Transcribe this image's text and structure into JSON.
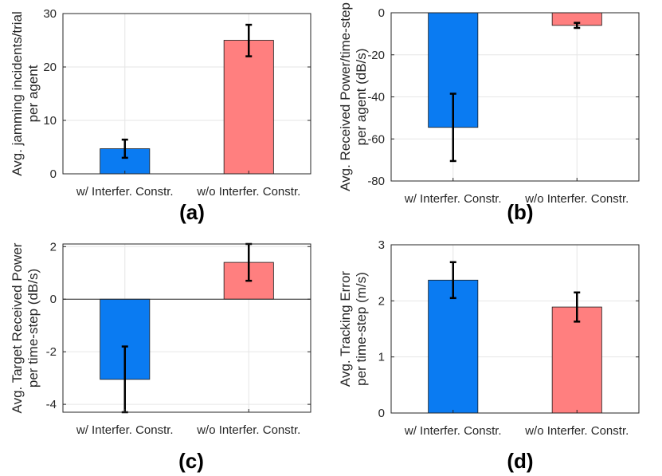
{
  "colors": {
    "blue": "#0A7BF2",
    "red": "#FF7F7F",
    "axis": "#262626",
    "grid": "#E6E6E6",
    "error": "#000000"
  },
  "chart_data": [
    {
      "type": "bar",
      "panel_label": "(a)",
      "categories": [
        "w/ Interfer. Constr.",
        "w/o Interfer. Constr."
      ],
      "values": [
        4.7,
        25.0
      ],
      "err_low": [
        3.0,
        22.0
      ],
      "err_high": [
        6.4,
        27.9
      ],
      "ylabel": [
        "Avg. jamming incidents/trial",
        "per agent"
      ],
      "ylim": [
        0,
        30
      ],
      "yticks": [
        0,
        10,
        20,
        30
      ],
      "ytick_labels": [
        "0",
        "10",
        "20",
        "30"
      ],
      "grid": true
    },
    {
      "type": "bar",
      "panel_label": "(b)",
      "categories": [
        "w/ Interfer. Constr.",
        "w/o Interfer. Constr."
      ],
      "values": [
        -54.5,
        -6.0
      ],
      "err_low": [
        -70.5,
        -7.2
      ],
      "err_high": [
        -38.5,
        -4.8
      ],
      "ylabel": [
        "Avg. Received Power/time-step",
        "per agent (dB/s)"
      ],
      "ylim": [
        -80,
        0
      ],
      "yticks": [
        -80,
        -60,
        -40,
        -20,
        0
      ],
      "ytick_labels": [
        "-80",
        "-60",
        "-40",
        "-20",
        "0"
      ],
      "grid": true
    },
    {
      "type": "bar",
      "panel_label": "(c)",
      "categories": [
        "w/ Interfer. Constr.",
        "w/o Interfer. Constr."
      ],
      "values": [
        -3.05,
        1.4
      ],
      "err_low": [
        -4.3,
        0.7
      ],
      "err_high": [
        -1.8,
        2.1
      ],
      "ylabel": [
        "Avg. Target Received Power",
        "per time-step (dB/s)"
      ],
      "ylim": [
        -4.3,
        2.1
      ],
      "yticks": [
        -4,
        -2,
        0,
        2
      ],
      "ytick_labels": [
        "-4",
        "-2",
        "0",
        "2"
      ],
      "grid": true
    },
    {
      "type": "bar",
      "panel_label": "(d)",
      "categories": [
        "w/ Interfer. Constr.",
        "w/o Interfer. Constr."
      ],
      "values": [
        2.37,
        1.89
      ],
      "err_low": [
        2.05,
        1.63
      ],
      "err_high": [
        2.69,
        2.15
      ],
      "ylabel": [
        "Avg. Tracking Error",
        "per time-step (m/s)"
      ],
      "ylim": [
        0,
        3
      ],
      "yticks": [
        0,
        1,
        2,
        3
      ],
      "ytick_labels": [
        "0",
        "1",
        "2",
        "3"
      ],
      "grid": true
    }
  ]
}
